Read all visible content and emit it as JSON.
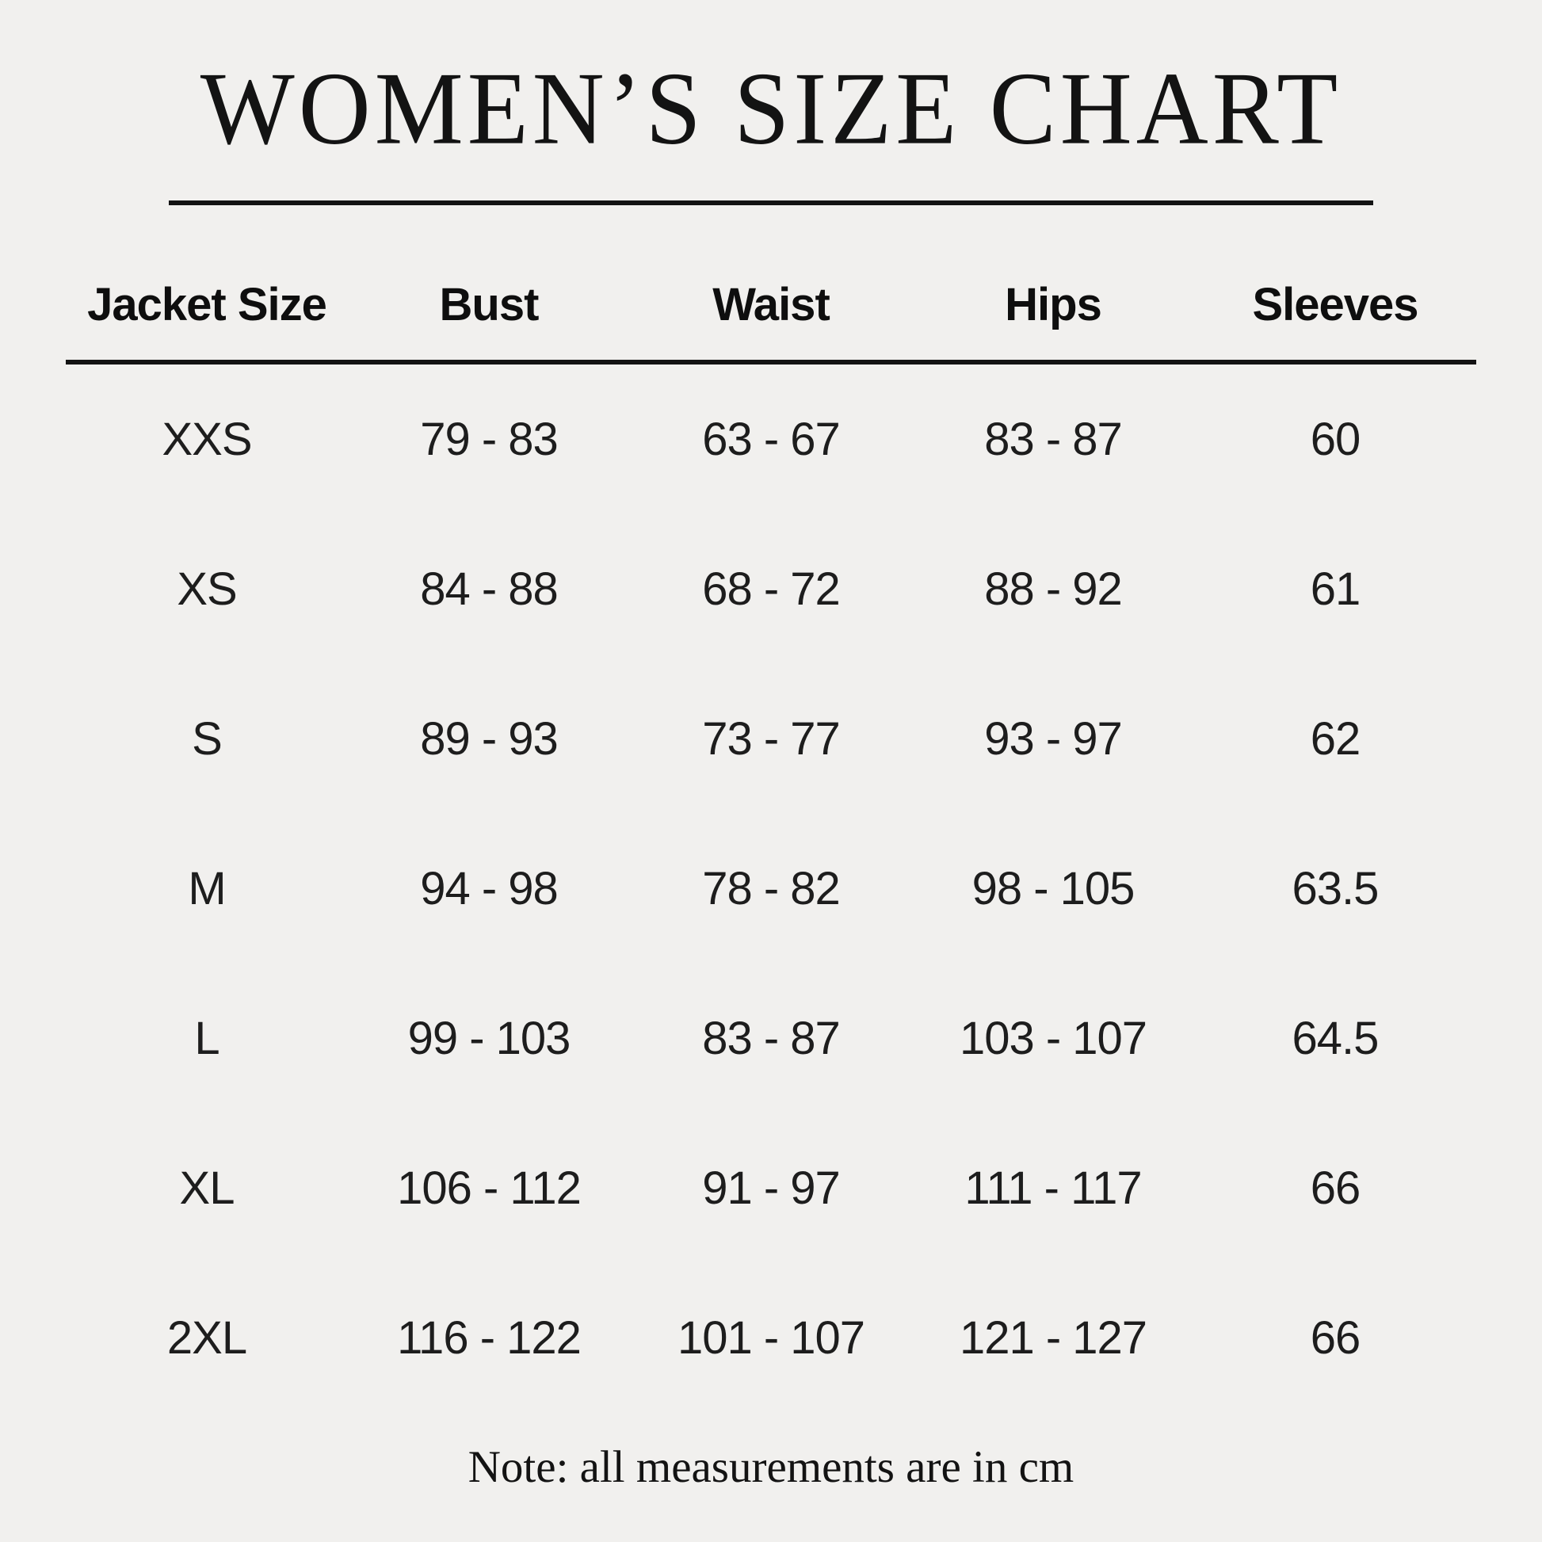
{
  "page": {
    "title": "WOMEN’S SIZE CHART",
    "note": "Note: all measurements are in cm"
  },
  "colors": {
    "background": "#f1f0ee",
    "text": "#161616",
    "rule": "#131313"
  },
  "chart_data": {
    "type": "table",
    "title": "WOMEN’S SIZE CHART",
    "units": "cm",
    "columns": [
      "Jacket Size",
      "Bust",
      "Waist",
      "Hips",
      "Sleeves"
    ],
    "rows": [
      [
        "XXS",
        "79 - 83",
        "63 - 67",
        "83 - 87",
        "60"
      ],
      [
        "XS",
        "84 - 88",
        "68 - 72",
        "88 - 92",
        "61"
      ],
      [
        "S",
        "89 - 93",
        "73 - 77",
        "93 - 97",
        "62"
      ],
      [
        "M",
        "94 - 98",
        "78 - 82",
        "98 - 105",
        "63.5"
      ],
      [
        "L",
        "99 - 103",
        "83 - 87",
        "103 - 107",
        "64.5"
      ],
      [
        "XL",
        "106 - 112",
        "91 - 97",
        "111 - 117",
        "66"
      ],
      [
        "2XL",
        "116 - 122",
        "101 - 107",
        "121 - 127",
        "66"
      ]
    ]
  },
  "table": {
    "headers": [
      "Jacket Size",
      "Bust",
      "Waist",
      "Hips",
      "Sleeves"
    ]
  }
}
